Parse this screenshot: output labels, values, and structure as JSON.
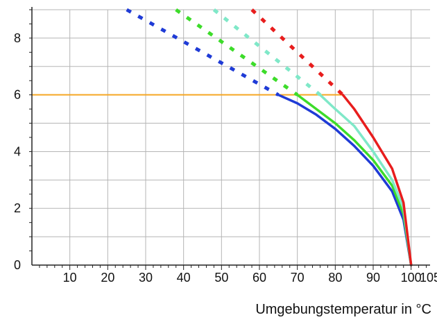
{
  "chart_data": {
    "type": "line",
    "title": "",
    "xlabel": "Umgebungstemperatur in °C",
    "ylabel": "",
    "xlim": [
      0,
      105
    ],
    "ylim": [
      0,
      9
    ],
    "x_ticks": [
      10,
      20,
      30,
      40,
      50,
      60,
      70,
      80,
      90,
      100,
      105
    ],
    "y_ticks": [
      0,
      2,
      4,
      6,
      8
    ],
    "grid": true,
    "legend": "none",
    "reference_line": {
      "y": 6,
      "x_start": 0,
      "x_end": 82,
      "color": "#f5a623"
    },
    "series": [
      {
        "color": "#1f3bd6",
        "dashed": {
          "x": [
            25,
            65
          ],
          "y": [
            9.0,
            6.0
          ]
        },
        "solid": {
          "x": [
            65,
            70,
            75,
            80,
            85,
            90,
            95,
            98,
            100
          ],
          "y": [
            6.0,
            5.7,
            5.3,
            4.8,
            4.2,
            3.5,
            2.6,
            1.6,
            0.0
          ]
        }
      },
      {
        "color": "#3ddc2a",
        "dashed": {
          "x": [
            38,
            70
          ],
          "y": [
            9.0,
            6.0
          ]
        },
        "solid": {
          "x": [
            70,
            75,
            80,
            85,
            90,
            95,
            98,
            100
          ],
          "y": [
            6.0,
            5.5,
            5.0,
            4.4,
            3.7,
            2.8,
            1.8,
            0.0
          ]
        }
      },
      {
        "color": "#7fe8c8",
        "dashed": {
          "x": [
            48,
            76
          ],
          "y": [
            9.0,
            6.0
          ]
        },
        "solid": {
          "x": [
            76,
            80,
            85,
            90,
            95,
            98,
            100
          ],
          "y": [
            6.0,
            5.5,
            4.9,
            4.0,
            3.0,
            2.0,
            0.0
          ]
        }
      },
      {
        "color": "#e81d1d",
        "dashed": {
          "x": [
            58,
            82
          ],
          "y": [
            9.0,
            6.0
          ]
        },
        "solid": {
          "x": [
            82,
            85,
            90,
            95,
            98,
            100
          ],
          "y": [
            6.0,
            5.5,
            4.5,
            3.4,
            2.2,
            0.0
          ]
        }
      }
    ]
  }
}
